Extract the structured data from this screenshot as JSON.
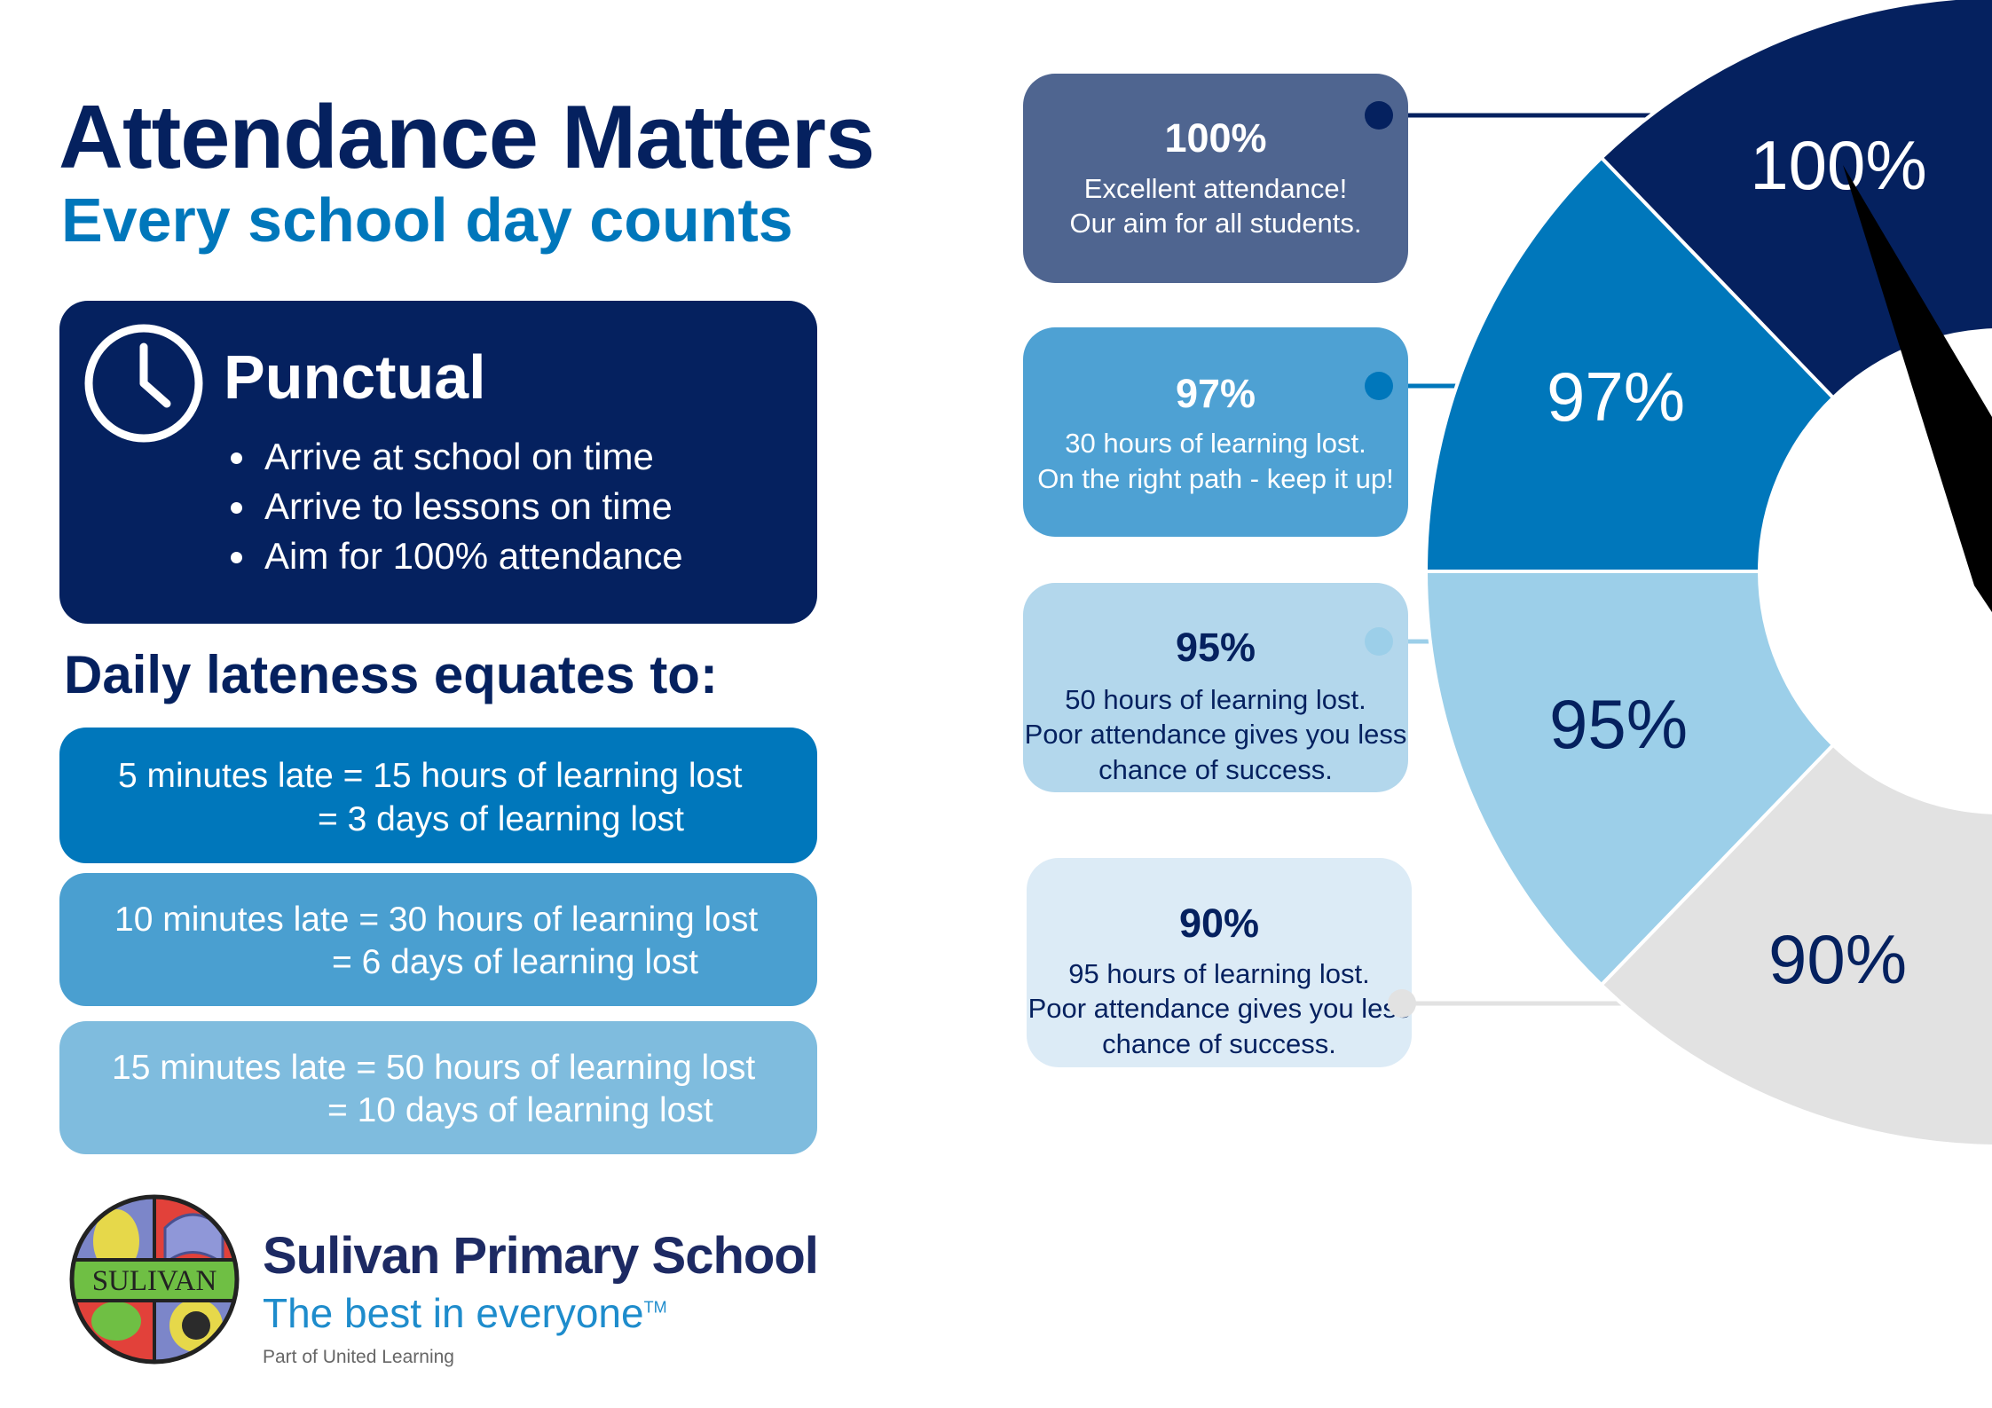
{
  "header": {
    "title": "Attendance Matters",
    "subtitle": "Every school day counts"
  },
  "punctual": {
    "icon": "clock-icon",
    "title": "Punctual",
    "bullets": [
      "Arrive at school on time",
      "Arrive to lessons on time",
      "Aim for 100% attendance"
    ]
  },
  "lateness": {
    "heading": "Daily lateness equates to:",
    "items": [
      {
        "line1": "5 minutes late = 15 hours of learning lost",
        "line2": "= 3 days of learning lost",
        "color": "#0077bb"
      },
      {
        "line1": "10 minutes late = 30 hours of learning lost",
        "line2": "= 6 days of learning lost",
        "color": "#4a9fd0"
      },
      {
        "line1": "15 minutes late = 50 hours of learning lost",
        "line2": "= 10 days of learning lost",
        "color": "#7fbcde"
      }
    ]
  },
  "cards": [
    {
      "title": "100%",
      "lines": [
        "Excellent attendance!",
        "Our aim for all students."
      ],
      "bg": "#4f6590",
      "fg": "#ffffff",
      "dot": "#05215f"
    },
    {
      "title": "97%",
      "lines": [
        "30 hours of learning lost.",
        "On the right path - keep it up!"
      ],
      "bg": "#4ea1d3",
      "fg": "#ffffff",
      "dot": "#0077bb"
    },
    {
      "title": "95%",
      "lines": [
        "50 hours of learning lost.",
        "Poor attendance gives you less",
        "chance of success."
      ],
      "bg": "#b3d7ec",
      "fg": "#05215f",
      "dot": "#9ccfe9"
    },
    {
      "title": "90%",
      "lines": [
        "95 hours of learning lost.",
        "Poor attendance gives you less",
        "chance of success."
      ],
      "bg": "#dcebf6",
      "fg": "#05215f",
      "dot": "#e2e2e2"
    }
  ],
  "gauge": {
    "segments": [
      {
        "label": "100%",
        "value": 100,
        "color": "#05215f",
        "text": "#ffffff"
      },
      {
        "label": "97%",
        "value": 97,
        "color": "#0077bb",
        "text": "#ffffff"
      },
      {
        "label": "95%",
        "value": 95,
        "color": "#9ccfe9",
        "text": "#05215f"
      },
      {
        "label": "90%",
        "value": 90,
        "color": "#e2e2e2",
        "text": "#05215f"
      }
    ],
    "needle_value": 100
  },
  "school": {
    "logo_text": "SULIVAN",
    "name": "Sulivan Primary School",
    "tagline": "The best in everyone",
    "trademark": "TM",
    "part_of": "Part of United Learning"
  }
}
